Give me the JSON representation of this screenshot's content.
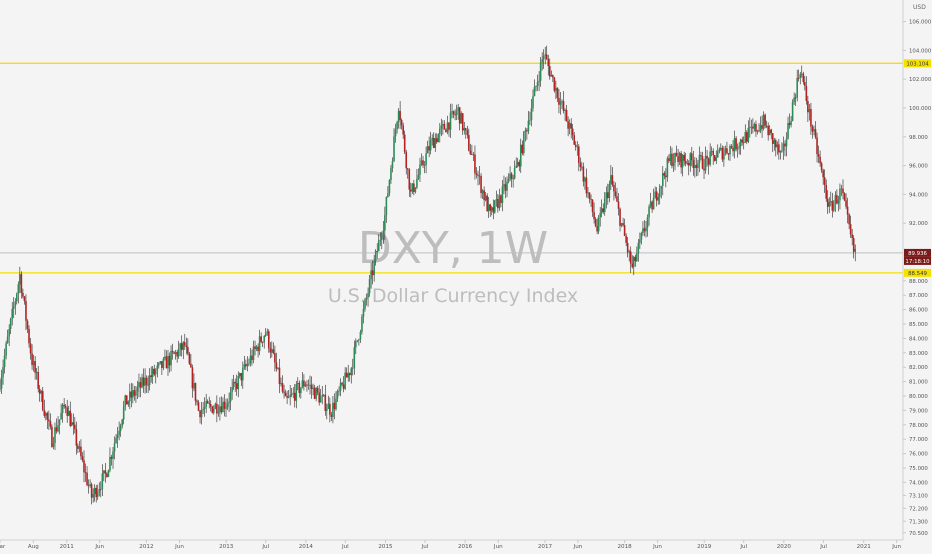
{
  "chart_data": {
    "type": "candlestick",
    "title": "DXY, 1W",
    "subtitle": "U.S. Dollar Currency Index",
    "currency_label": "USD",
    "grid": false,
    "y_axis": {
      "position": "right",
      "ylim": [
        70.0,
        107.5
      ],
      "ticks": [
        {
          "v": 70.5,
          "label": "70.500"
        },
        {
          "v": 71.3,
          "label": "71.300"
        },
        {
          "v": 72.2,
          "label": "72.200"
        },
        {
          "v": 73.1,
          "label": "73.100"
        },
        {
          "v": 74.0,
          "label": "74.000"
        },
        {
          "v": 75.0,
          "label": "75.000"
        },
        {
          "v": 76.0,
          "label": "76.000"
        },
        {
          "v": 77.0,
          "label": "77.000"
        },
        {
          "v": 78.0,
          "label": "78.000"
        },
        {
          "v": 79.0,
          "label": "79.000"
        },
        {
          "v": 80.0,
          "label": "80.000"
        },
        {
          "v": 81.0,
          "label": "81.000"
        },
        {
          "v": 82.0,
          "label": "82.000"
        },
        {
          "v": 83.0,
          "label": "83.000"
        },
        {
          "v": 84.0,
          "label": "84.000"
        },
        {
          "v": 85.0,
          "label": "85.000"
        },
        {
          "v": 86.0,
          "label": "86.000"
        },
        {
          "v": 87.0,
          "label": "87.000"
        },
        {
          "v": 88.0,
          "label": "88.000"
        },
        {
          "v": 92.0,
          "label": "92.000"
        },
        {
          "v": 94.0,
          "label": "94.000"
        },
        {
          "v": 96.0,
          "label": "96.000"
        },
        {
          "v": 98.0,
          "label": "98.000"
        },
        {
          "v": 100.0,
          "label": "100.000"
        },
        {
          "v": 102.0,
          "label": "102.000"
        },
        {
          "v": 104.0,
          "label": "104.000"
        },
        {
          "v": 106.0,
          "label": "106.000"
        }
      ]
    },
    "x_axis": {
      "range": [
        "2010-03-01",
        "2021-06-30"
      ],
      "ticks": [
        {
          "date": "2010-03-01",
          "label": "Mar"
        },
        {
          "date": "2010-08-01",
          "label": "Aug"
        },
        {
          "date": "2011-01-01",
          "label": "2011"
        },
        {
          "date": "2011-06-01",
          "label": "Jun"
        },
        {
          "date": "2012-01-01",
          "label": "2012"
        },
        {
          "date": "2012-06-01",
          "label": "Jun"
        },
        {
          "date": "2013-01-01",
          "label": "2013"
        },
        {
          "date": "2013-07-01",
          "label": "Jul"
        },
        {
          "date": "2014-01-01",
          "label": "2014"
        },
        {
          "date": "2014-07-01",
          "label": "Jul"
        },
        {
          "date": "2015-01-01",
          "label": "2015"
        },
        {
          "date": "2015-07-01",
          "label": "Jul"
        },
        {
          "date": "2016-01-01",
          "label": "2016"
        },
        {
          "date": "2016-06-01",
          "label": "Jun"
        },
        {
          "date": "2017-01-01",
          "label": "2017"
        },
        {
          "date": "2017-06-01",
          "label": "Jun"
        },
        {
          "date": "2018-01-01",
          "label": "2018"
        },
        {
          "date": "2018-06-01",
          "label": "Jun"
        },
        {
          "date": "2019-01-01",
          "label": "2019"
        },
        {
          "date": "2019-07-01",
          "label": "Jul"
        },
        {
          "date": "2020-01-01",
          "label": "2020"
        },
        {
          "date": "2020-07-01",
          "label": "Jul"
        },
        {
          "date": "2021-01-01",
          "label": "2021"
        },
        {
          "date": "2021-06-01",
          "label": "Jun"
        }
      ]
    },
    "horizontal_levels": [
      {
        "value": 103.104,
        "label": "103.104",
        "color": "#f5e100"
      },
      {
        "value": 88.549,
        "label": "88.549",
        "color": "#f5e100"
      }
    ],
    "current_price": {
      "value": 89.936,
      "label": "89.936",
      "countdown": "17:18:10",
      "color": "#7a1b1b"
    },
    "colors": {
      "up": "#2e8b57",
      "down": "#b22222",
      "wick": "#222222"
    },
    "price_path": [
      {
        "date": "2010-03-01",
        "value": 80.5
      },
      {
        "date": "2010-06-07",
        "value": 88.4
      },
      {
        "date": "2010-08-01",
        "value": 82.5
      },
      {
        "date": "2010-11-01",
        "value": 77.0
      },
      {
        "date": "2011-01-03",
        "value": 79.5
      },
      {
        "date": "2011-05-02",
        "value": 73.0
      },
      {
        "date": "2011-07-04",
        "value": 74.5
      },
      {
        "date": "2011-10-03",
        "value": 79.5
      },
      {
        "date": "2012-01-02",
        "value": 81.0
      },
      {
        "date": "2012-07-02",
        "value": 83.5
      },
      {
        "date": "2012-09-03",
        "value": 79.0
      },
      {
        "date": "2013-01-07",
        "value": 79.5
      },
      {
        "date": "2013-07-08",
        "value": 84.5
      },
      {
        "date": "2013-10-07",
        "value": 79.5
      },
      {
        "date": "2014-01-06",
        "value": 81.0
      },
      {
        "date": "2014-05-05",
        "value": 79.0
      },
      {
        "date": "2014-08-04",
        "value": 82.0
      },
      {
        "date": "2015-01-05",
        "value": 92.5
      },
      {
        "date": "2015-03-09",
        "value": 100.3
      },
      {
        "date": "2015-05-04",
        "value": 94.0
      },
      {
        "date": "2015-08-03",
        "value": 97.5
      },
      {
        "date": "2015-12-07",
        "value": 99.8
      },
      {
        "date": "2016-05-02",
        "value": 92.5
      },
      {
        "date": "2016-09-05",
        "value": 96.0
      },
      {
        "date": "2017-01-02",
        "value": 103.8
      },
      {
        "date": "2017-06-05",
        "value": 97.0
      },
      {
        "date": "2017-09-04",
        "value": 91.5
      },
      {
        "date": "2017-11-06",
        "value": 95.0
      },
      {
        "date": "2018-02-12",
        "value": 88.8
      },
      {
        "date": "2018-05-07",
        "value": 93.0
      },
      {
        "date": "2018-08-06",
        "value": 96.5
      },
      {
        "date": "2019-01-07",
        "value": 96.2
      },
      {
        "date": "2019-06-03",
        "value": 97.5
      },
      {
        "date": "2019-10-07",
        "value": 99.0
      },
      {
        "date": "2019-12-30",
        "value": 96.5
      },
      {
        "date": "2020-03-23",
        "value": 102.8
      },
      {
        "date": "2020-05-04",
        "value": 99.5
      },
      {
        "date": "2020-08-03",
        "value": 93.0
      },
      {
        "date": "2020-09-28",
        "value": 94.2
      },
      {
        "date": "2020-11-23",
        "value": 90.0
      }
    ]
  }
}
